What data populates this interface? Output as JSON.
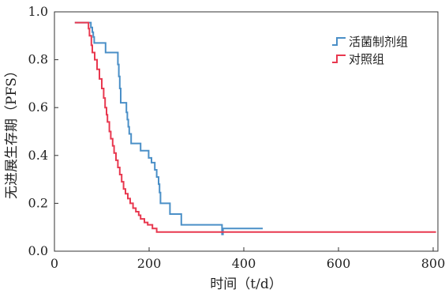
{
  "chart_data": {
    "type": "line",
    "xlabel": "时间（t/d）",
    "ylabel": "无进展生存期（PFS）",
    "xlim": [
      0,
      810
    ],
    "ylim": [
      0,
      1.0
    ],
    "x_ticks": [
      0,
      200,
      400,
      600,
      800
    ],
    "y_ticks": [
      0.0,
      0.2,
      0.4,
      0.6,
      0.8,
      1.0
    ],
    "x_tick_labels": [
      "0",
      "200",
      "400",
      "600",
      "800"
    ],
    "y_tick_labels": [
      "0.0",
      "0.2",
      "0.4",
      "0.6",
      "0.8",
      "1.0"
    ],
    "grid": false,
    "legend_position": "top-right",
    "series": [
      {
        "name": "活菌制剂组",
        "color": "#4a8fc7",
        "points": [
          [
            43,
            0.955
          ],
          [
            75,
            0.955
          ],
          [
            77,
            0.935
          ],
          [
            80,
            0.915
          ],
          [
            82,
            0.895
          ],
          [
            84,
            0.87
          ],
          [
            105,
            0.87
          ],
          [
            108,
            0.83
          ],
          [
            132,
            0.83
          ],
          [
            134,
            0.78
          ],
          [
            136,
            0.73
          ],
          [
            138,
            0.68
          ],
          [
            140,
            0.62
          ],
          [
            150,
            0.62
          ],
          [
            152,
            0.58
          ],
          [
            154,
            0.55
          ],
          [
            156,
            0.52
          ],
          [
            158,
            0.49
          ],
          [
            162,
            0.45
          ],
          [
            178,
            0.45
          ],
          [
            182,
            0.42
          ],
          [
            195,
            0.42
          ],
          [
            199,
            0.39
          ],
          [
            205,
            0.37
          ],
          [
            212,
            0.34
          ],
          [
            216,
            0.31
          ],
          [
            220,
            0.28
          ],
          [
            222,
            0.245
          ],
          [
            224,
            0.2
          ],
          [
            240,
            0.2
          ],
          [
            244,
            0.155
          ],
          [
            266,
            0.155
          ],
          [
            268,
            0.11
          ],
          [
            352,
            0.11
          ],
          [
            354,
            0.07
          ],
          [
            356,
            0.095
          ],
          [
            440,
            0.095
          ]
        ]
      },
      {
        "name": "对照组",
        "color": "#e8384f",
        "points": [
          [
            43,
            0.955
          ],
          [
            70,
            0.955
          ],
          [
            72,
            0.93
          ],
          [
            74,
            0.9
          ],
          [
            78,
            0.86
          ],
          [
            80,
            0.83
          ],
          [
            85,
            0.8
          ],
          [
            90,
            0.76
          ],
          [
            95,
            0.72
          ],
          [
            100,
            0.68
          ],
          [
            104,
            0.64
          ],
          [
            107,
            0.6
          ],
          [
            110,
            0.57
          ],
          [
            112,
            0.54
          ],
          [
            116,
            0.5
          ],
          [
            119,
            0.47
          ],
          [
            123,
            0.44
          ],
          [
            126,
            0.41
          ],
          [
            130,
            0.38
          ],
          [
            134,
            0.35
          ],
          [
            138,
            0.32
          ],
          [
            142,
            0.29
          ],
          [
            146,
            0.26
          ],
          [
            150,
            0.24
          ],
          [
            155,
            0.22
          ],
          [
            160,
            0.2
          ],
          [
            166,
            0.18
          ],
          [
            172,
            0.165
          ],
          [
            178,
            0.15
          ],
          [
            182,
            0.135
          ],
          [
            190,
            0.12
          ],
          [
            197,
            0.11
          ],
          [
            207,
            0.095
          ],
          [
            216,
            0.08
          ],
          [
            806,
            0.08
          ]
        ]
      }
    ]
  }
}
